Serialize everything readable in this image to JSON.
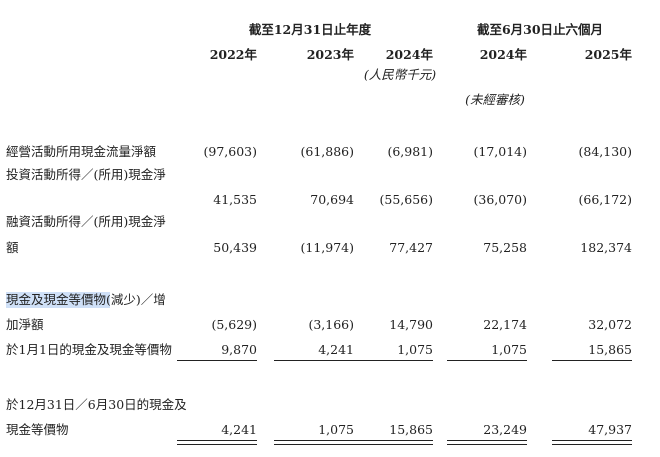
{
  "header": {
    "groups": [
      "截至12月31日止年度",
      "截至6月30日止六個月"
    ],
    "years": [
      "2022年",
      "2023年",
      "2024年",
      "2024年",
      "2025年"
    ],
    "unit": "(人民幣千元)",
    "audit_note": "(未經審核)"
  },
  "table": {
    "rows": [
      {
        "label": [
          "經營活動所用現金流量淨額"
        ],
        "values": [
          "(97,603)",
          "(61,886)",
          "(6,981)",
          "(17,014)",
          "(84,130)"
        ]
      },
      {
        "label": [
          "投資活動所得／(所用)現金淨"
        ],
        "values": [
          "41,535",
          "70,694",
          "(55,656)",
          "(36,070)",
          "(66,172)"
        ]
      },
      {
        "label": [
          "融資活動所得／(所用)現金淨",
          "額"
        ],
        "values": [
          "50,439",
          "(11,974)",
          "77,427",
          "75,258",
          "182,374"
        ]
      },
      {
        "label": [
          "現金及現金等價物(減少)／增",
          "加淨額"
        ],
        "values": [
          "(5,629)",
          "(3,166)",
          "14,790",
          "22,174",
          "32,072"
        ]
      },
      {
        "label": [
          "於1月1日的現金及現金等價物"
        ],
        "values": [
          "9,870",
          "4,241",
          "1,075",
          "1,075",
          "15,865"
        ]
      },
      {
        "label": [
          "於12月31日／6月30日的現金及",
          "現金等價物"
        ],
        "values": [
          "4,241",
          "1,075",
          "15,865",
          "23,249",
          "47,937"
        ]
      }
    ]
  }
}
